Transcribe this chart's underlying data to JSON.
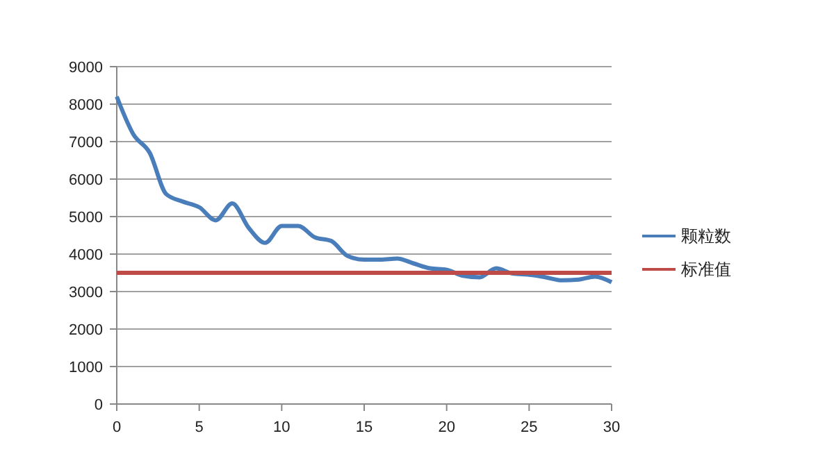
{
  "chart_data": {
    "type": "line",
    "x": [
      0,
      1,
      2,
      3,
      4,
      5,
      6,
      7,
      8,
      9,
      10,
      11,
      12,
      13,
      14,
      15,
      16,
      17,
      18,
      19,
      20,
      21,
      22,
      23,
      24,
      25,
      26,
      27,
      28,
      29,
      30
    ],
    "series": [
      {
        "name": "颗粒数",
        "color": "#4a7ebb",
        "values": [
          8200,
          7200,
          6700,
          5600,
          5400,
          5250,
          4900,
          5350,
          4700,
          4300,
          4750,
          4750,
          4450,
          4350,
          3950,
          3850,
          3850,
          3880,
          3750,
          3620,
          3580,
          3420,
          3380,
          3620,
          3480,
          3450,
          3380,
          3300,
          3320,
          3400,
          3250
        ]
      },
      {
        "name": "标准值",
        "color": "#be4b48",
        "x": [
          0,
          30
        ],
        "values": [
          3500,
          3500
        ]
      }
    ],
    "xlim": [
      0,
      30
    ],
    "xticks": [
      0,
      5,
      10,
      15,
      20,
      25,
      30
    ],
    "ylim": [
      0,
      9000
    ],
    "yticks": [
      0,
      1000,
      2000,
      3000,
      4000,
      5000,
      6000,
      7000,
      8000,
      9000
    ],
    "grid": "y",
    "legend": "right",
    "marker": "none",
    "line_style": "solid"
  }
}
